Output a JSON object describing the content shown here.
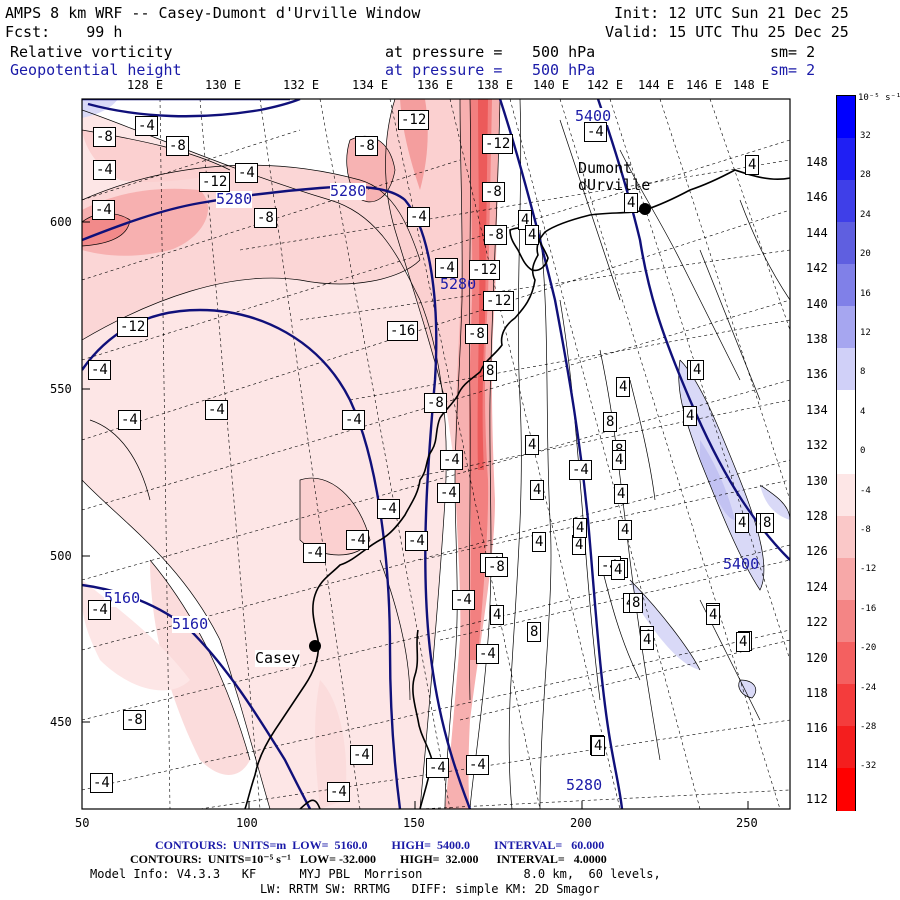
{
  "header": {
    "title": "AMPS 8 km WRF -- Casey-Dumont d'Urville Window",
    "init": "Init: 12 UTC Sun 21 Dec 25",
    "forecast": "Fcst:    99 h",
    "valid": "Valid: 15 UTC Thu 25 Dec 25"
  },
  "fields": [
    {
      "name": "Relative vorticity",
      "pressure_label": "at pressure =",
      "level": "500 hPa",
      "smoothing": "sm= 2",
      "color": "#000000"
    },
    {
      "name": "Geopotential height",
      "pressure_label": "at pressure =",
      "level": "500 hPa",
      "smoothing": "sm= 2",
      "color": "#1a1aa8"
    }
  ],
  "map": {
    "lon_labels": [
      "128 E",
      "130 E",
      "132 E",
      "134 E",
      "136 E",
      "138 E",
      "140 E",
      "142 E",
      "144 E",
      "146 E",
      "148 E"
    ],
    "right_labels": [
      "148 E",
      "146 E",
      "144 E",
      "142 E",
      "140 E",
      "138 E",
      "136 E",
      "134 E",
      "132 E",
      "130 E",
      "128 E",
      "126 E",
      "124 E",
      "122 E",
      "120 E",
      "118 E",
      "116 E",
      "114 E",
      "112 E"
    ],
    "x_ticks": [
      "50",
      "100",
      "150",
      "200",
      "250"
    ],
    "y_ticks": [
      "600",
      "550",
      "500",
      "450"
    ],
    "places": [
      {
        "name": "Casey"
      },
      {
        "name": "Dumont\ndUrville"
      }
    ],
    "height_labels": [
      "5400",
      "5280",
      "5280",
      "5280",
      "5160",
      "5160",
      "5400",
      "5280"
    ],
    "vort_labels": [
      "-8",
      "-4",
      "-8",
      "-4",
      "-4",
      "-12",
      "-4",
      "-8",
      "-12",
      "-8",
      "-4",
      "-12",
      "-4",
      "-8",
      "-4",
      "-8",
      "-12",
      "-16",
      "-12",
      "-12",
      "-8",
      "-4",
      "-4",
      "-4",
      "-4",
      "-4",
      "-4",
      "-4",
      "-4",
      "-8",
      "-4",
      "-4",
      "-4",
      "-4",
      "-4",
      "-8",
      "-4",
      "-4",
      "-4",
      "-4",
      "-4",
      "4",
      "4",
      "4",
      "8",
      "4",
      "8",
      "4",
      "4",
      "4",
      "4",
      "4",
      "8",
      "4",
      "4",
      "4",
      "4",
      "4",
      "4",
      "4",
      "4",
      "4",
      "8",
      "4",
      "8",
      "4",
      "4",
      "-4",
      "-8",
      "-4",
      "4",
      "-4",
      "4",
      "4",
      "4",
      "4",
      "4",
      "4",
      "4",
      "8",
      "4",
      "4"
    ],
    "colors": {
      "height_contour": "#10107a",
      "coast": "#000000",
      "station": "#000000"
    }
  },
  "colorbar": {
    "unit": "10⁻⁵ s⁻¹",
    "labels": [
      "32",
      "28",
      "24",
      "20",
      "16",
      "12",
      "8",
      "4",
      "0",
      "-4",
      "-8",
      "-12",
      "-16",
      "-20",
      "-24",
      "-28",
      "-32"
    ],
    "colors": [
      "#0000ff",
      "#1f1ff4",
      "#3f3fe8",
      "#5f5fe0",
      "#8080e8",
      "#a6a6f0",
      "#d0d0f8",
      "#ffffff",
      "#ffffff",
      "#fde6e6",
      "#fac8c8",
      "#f7a8a8",
      "#f48585",
      "#f46060",
      "#f43c3c",
      "#f41e1e",
      "#ff0000"
    ]
  },
  "footer": {
    "line1": "CONTOURS:  UNITS=m  LOW=  5160.0        HIGH=  5400.0        INTERVAL=   60.000",
    "line2": "CONTOURS:  UNITS=10⁻⁵ s⁻¹   LOW= -32.000        HIGH=  32.000      INTERVAL=   4.0000",
    "line3": "Model Info: V4.3.3   KF      MYJ PBL  Morrison              8.0 km,  60 levels,",
    "line4": "LW: RRTM SW: RRTMG   DIFF: simple KM: 2D Smagor"
  }
}
